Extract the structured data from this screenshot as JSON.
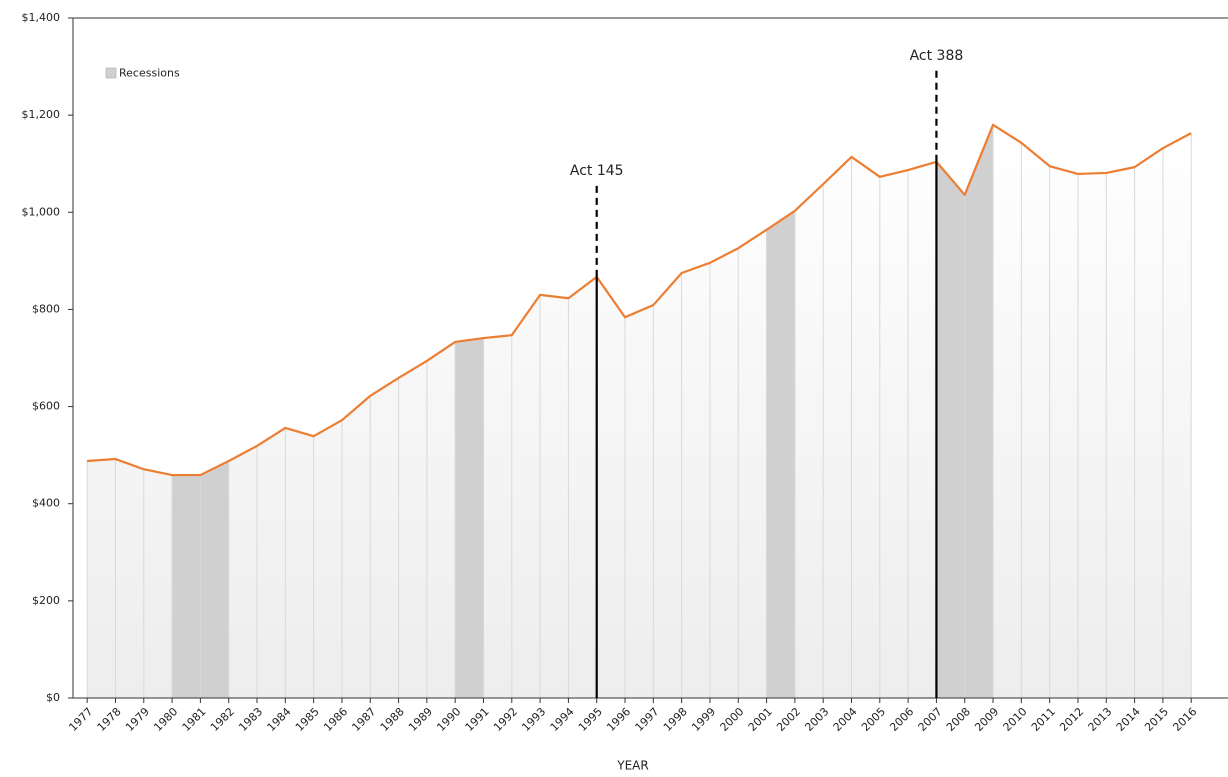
{
  "chart_data": {
    "type": "line",
    "x": [
      1977,
      1978,
      1979,
      1980,
      1981,
      1982,
      1983,
      1984,
      1985,
      1986,
      1987,
      1988,
      1989,
      1990,
      1991,
      1992,
      1993,
      1994,
      1995,
      1996,
      1997,
      1998,
      1999,
      2000,
      2001,
      2002,
      2003,
      2004,
      2005,
      2006,
      2007,
      2008,
      2009,
      2010,
      2011,
      2012,
      2013,
      2014,
      2015,
      2016
    ],
    "values": [
      488,
      492,
      471,
      459,
      459,
      488,
      519,
      556,
      539,
      572,
      622,
      659,
      694,
      733,
      741,
      747,
      830,
      823,
      867,
      784,
      809,
      875,
      896,
      926,
      964,
      1003,
      1058,
      1114,
      1073,
      1087,
      1104,
      1036,
      1180,
      1143,
      1095,
      1079,
      1081,
      1093,
      1132,
      1163
    ],
    "color": "#ed7d31",
    "xlim": [
      1976.5,
      2017.3
    ],
    "ylim": [
      0,
      1400
    ],
    "yticks": [
      {
        "value": 0,
        "label": "$0"
      },
      {
        "value": 200,
        "label": "$200"
      },
      {
        "value": 400,
        "label": "$400"
      },
      {
        "value": 600,
        "label": "$600"
      },
      {
        "value": 800,
        "label": "$800"
      },
      {
        "value": 1000,
        "label": "$1,000"
      },
      {
        "value": 1200,
        "label": "$1,200"
      },
      {
        "value": 1400,
        "label": "$1,400"
      }
    ],
    "xlabel": "YEAR",
    "recession_label": "Recessions",
    "recession_color": "#d0d0d0",
    "recessions": [
      [
        1980,
        1982
      ],
      [
        1990,
        1991
      ],
      [
        2001,
        2002
      ],
      [
        2007,
        2009
      ]
    ],
    "annotations": [
      {
        "label": "Act 145",
        "x": 1995
      },
      {
        "label": "Act 388",
        "x": 2007
      }
    ],
    "legend": "upper left"
  }
}
